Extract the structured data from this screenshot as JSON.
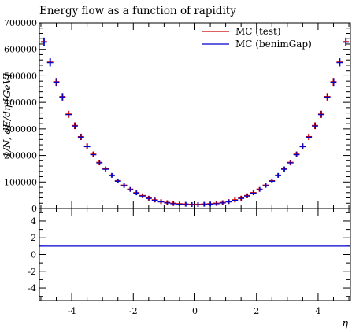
{
  "title": "Energy flow as a function of rapidity",
  "chart_data": [
    {
      "type": "scatter",
      "role": "main",
      "title": "Energy flow as a function of rapidity",
      "xlabel": "η",
      "ylabel": "1/N, dE/dη [GeV]",
      "xlim": [
        -5.05,
        5.05
      ],
      "ylim": [
        0,
        700000
      ],
      "yticks": [
        {
          "value": 0,
          "label": "0"
        },
        {
          "value": 100000,
          "label": "100000"
        },
        {
          "value": 200000,
          "label": "200000"
        },
        {
          "value": 300000,
          "label": "300000"
        },
        {
          "value": 400000,
          "label": "400000"
        },
        {
          "value": 500000,
          "label": "500000"
        },
        {
          "value": 600000,
          "label": "600000"
        },
        {
          "value": 700000,
          "label": "700000"
        }
      ],
      "legend": {
        "placement": "top-right"
      },
      "series": [
        {
          "name": "MC (test)",
          "color": "#cc0000",
          "x": [
            -4.9,
            -4.7,
            -4.5,
            -4.3,
            -4.1,
            -3.9,
            -3.7,
            -3.5,
            -3.3,
            -3.1,
            -2.9,
            -2.7,
            -2.5,
            -2.3,
            -2.1,
            -1.9,
            -1.7,
            -1.5,
            -1.3,
            -1.1,
            -0.9,
            -0.7,
            -0.5,
            -0.3,
            -0.1,
            0.1,
            0.3,
            0.5,
            0.7,
            0.9,
            1.1,
            1.3,
            1.5,
            1.7,
            1.9,
            2.1,
            2.3,
            2.5,
            2.7,
            2.9,
            3.1,
            3.3,
            3.5,
            3.7,
            3.9,
            4.1,
            4.3,
            4.5,
            4.7,
            4.9
          ],
          "y": [
            628000,
            551000,
            477000,
            421000,
            355000,
            312000,
            270000,
            234000,
            204000,
            173000,
            149000,
            125000,
            104000,
            87000,
            72000,
            59000,
            48000,
            39000,
            32000,
            26000,
            22000,
            19000,
            17000,
            16000,
            15000,
            15000,
            16000,
            17000,
            19000,
            22000,
            26000,
            32000,
            39000,
            48000,
            59000,
            72000,
            87000,
            104000,
            125000,
            149000,
            173000,
            204000,
            234000,
            270000,
            312000,
            355000,
            421000,
            477000,
            551000,
            628000
          ]
        },
        {
          "name": "MC (benimGap)",
          "color": "#0000cc",
          "x": [
            -4.9,
            -4.7,
            -4.5,
            -4.3,
            -4.1,
            -3.9,
            -3.7,
            -3.5,
            -3.3,
            -3.1,
            -2.9,
            -2.7,
            -2.5,
            -2.3,
            -2.1,
            -1.9,
            -1.7,
            -1.5,
            -1.3,
            -1.1,
            -0.9,
            -0.7,
            -0.5,
            -0.3,
            -0.1,
            0.1,
            0.3,
            0.5,
            0.7,
            0.9,
            1.1,
            1.3,
            1.5,
            1.7,
            1.9,
            2.1,
            2.3,
            2.5,
            2.7,
            2.9,
            3.1,
            3.3,
            3.5,
            3.7,
            3.9,
            4.1,
            4.3,
            4.5,
            4.7,
            4.9
          ],
          "y": [
            628000,
            551000,
            477000,
            421000,
            355000,
            312000,
            270000,
            234000,
            204000,
            173000,
            149000,
            125000,
            104000,
            87000,
            72000,
            59000,
            48000,
            39000,
            32000,
            26000,
            22000,
            19000,
            17000,
            16000,
            15000,
            15000,
            16000,
            17000,
            19000,
            22000,
            26000,
            32000,
            39000,
            48000,
            59000,
            72000,
            87000,
            104000,
            125000,
            149000,
            173000,
            204000,
            234000,
            270000,
            312000,
            355000,
            421000,
            477000,
            551000,
            628000
          ]
        }
      ]
    },
    {
      "type": "line",
      "role": "ratio",
      "xlim": [
        -5.05,
        5.05
      ],
      "ylim": [
        -5.5,
        5.5
      ],
      "xticks": [
        {
          "value": -4,
          "label": "-4"
        },
        {
          "value": -2,
          "label": "-2"
        },
        {
          "value": 0,
          "label": "0"
        },
        {
          "value": 2,
          "label": "2"
        },
        {
          "value": 4,
          "label": "4"
        }
      ],
      "yticks": [
        {
          "value": -4,
          "label": "-4"
        },
        {
          "value": -2,
          "label": "-2"
        },
        {
          "value": 0,
          "label": "0"
        },
        {
          "value": 2,
          "label": "2"
        },
        {
          "value": 4,
          "label": "4"
        }
      ],
      "series": [
        {
          "name": "MC (benimGap)",
          "color": "#0000cc",
          "x": [
            -5.05,
            5.05
          ],
          "y": [
            1,
            1
          ]
        }
      ]
    }
  ]
}
